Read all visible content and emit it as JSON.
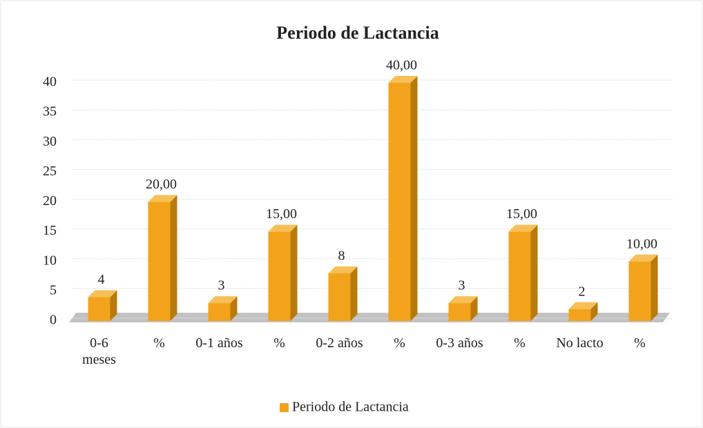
{
  "chart_data": {
    "type": "bar",
    "title": "Periodo de Lactancia",
    "categories": [
      "0-6 meses",
      "%",
      "0-1 años",
      "%",
      "0-2 años",
      "%",
      "0-3 años",
      "%",
      "No lacto",
      "%"
    ],
    "series": [
      {
        "name": "Periodo de Lactancia",
        "color": "#f2a31b",
        "values": [
          4,
          20,
          3,
          15,
          8,
          40,
          3,
          15,
          2,
          10
        ],
        "value_labels": [
          "4",
          "20,00",
          "3",
          "15,00",
          "8",
          "40,00",
          "3",
          "15,00",
          "2",
          "10,00"
        ]
      }
    ],
    "ylim": [
      0,
      40
    ],
    "yticks": [
      0,
      5,
      10,
      15,
      20,
      25,
      30,
      35,
      40
    ],
    "grid": true,
    "legend": "bottom"
  }
}
